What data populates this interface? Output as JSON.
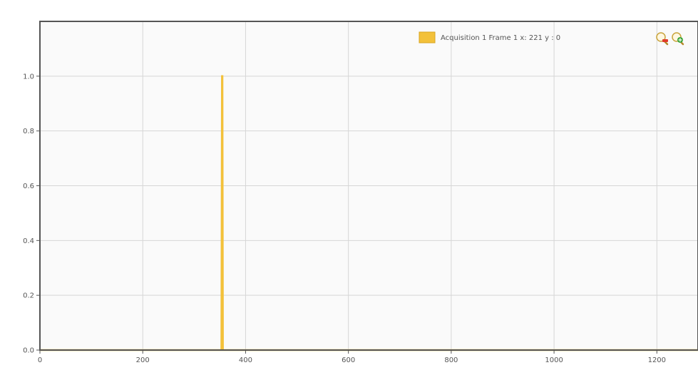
{
  "legend": {
    "label": "Acquisition 1 Frame 1",
    "readout": "x: 221 y : 0"
  },
  "zoom": {
    "out_icon": "zoom-out-icon",
    "in_icon": "zoom-in-icon"
  },
  "colors": {
    "series": "#f3c13a",
    "grid": "#d6d6d6",
    "frame": "#555555",
    "plot_bg": "#fafafa"
  },
  "chart_data": {
    "type": "line",
    "title": "",
    "xlabel": "",
    "ylabel": "",
    "xlim": [
      0,
      1280
    ],
    "ylim": [
      0,
      1.2
    ],
    "x_ticks": [
      "0",
      "200",
      "400",
      "600",
      "800",
      "1000",
      "1200"
    ],
    "y_ticks": [
      "0.0",
      "0.2",
      "0.4",
      "0.6",
      "0.8",
      "1.0"
    ],
    "grid": true,
    "legend_position": "top-right",
    "series": [
      {
        "name": "Acquisition 1 Frame 1",
        "color": "#f3c13a",
        "x": [
          0,
          353,
          354,
          355,
          356,
          1280
        ],
        "y": [
          0,
          0,
          1,
          1,
          0,
          0
        ]
      }
    ]
  }
}
